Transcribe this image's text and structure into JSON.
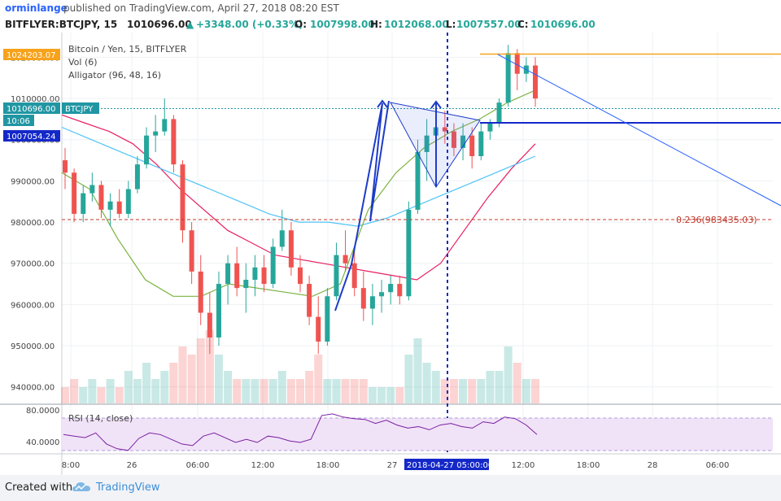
{
  "header": {
    "author": "orminlange",
    "published_text": "published on TradingView.com, April 27, 2018 08:20 EST"
  },
  "quote": {
    "symbol": "BITFLYER:BTCJPY, 15",
    "last": "1010696.00",
    "change": "+3348.00 (+0.33%)",
    "open_label": "O:",
    "open": "1007998.00",
    "high_label": "H:",
    "high": "1012068.00",
    "low_label": "L:",
    "low": "1007557.00",
    "close_label": "C:",
    "close": "1010696.00"
  },
  "legend": {
    "title": "Bitcoin / Yen, 15, BITFLYER",
    "vol": "Vol (6)",
    "alligator": "Alligator (96, 48, 16)"
  },
  "price_tags": {
    "high_line": "1024203.07",
    "last_price": "1010696.00",
    "symbol": "BTCJPY",
    "countdown": "10:06",
    "blue_line": "1007054.24"
  },
  "fib_label": "0.236(983435.03)",
  "rsi": {
    "label": "RSI (14, close)",
    "ticks": [
      "80.0000",
      "40.0000"
    ],
    "upper": 70,
    "lower": 30
  },
  "time_cursor": "2018-04-27 05:00:00",
  "footer": {
    "created": "Created with",
    "brand": "TradingView"
  },
  "colors": {
    "up": "#26a69a",
    "down": "#ef5350",
    "accent": "#2962ff",
    "orange": "#f7a21b"
  },
  "chart_data": {
    "type": "candlestick",
    "title": "Bitcoin / Yen, 15, BITFLYER",
    "ylim": [
      936000,
      1026000
    ],
    "y_ticks": [
      1020000,
      1010000,
      1000000,
      990000,
      980000,
      970000,
      960000,
      950000,
      940000
    ],
    "y_tick_labels": [
      "1020000.00",
      "1010000.00",
      "1000000.00",
      "990000.00",
      "980000.00",
      "970000.00",
      "960000.00",
      "950000.00",
      "940000.00"
    ],
    "x_ticks": [
      "8:00",
      "26",
      "06:00",
      "12:00",
      "18:00",
      "27",
      "12:00",
      "18:00",
      "28",
      "06:00"
    ],
    "candles": [
      [
        995000,
        998000,
        988000,
        992000
      ],
      [
        992000,
        993000,
        980000,
        982000
      ],
      [
        982000,
        989000,
        980000,
        987000
      ],
      [
        987000,
        992000,
        985000,
        989000
      ],
      [
        989000,
        990000,
        981000,
        983000
      ],
      [
        983000,
        987000,
        979000,
        985000
      ],
      [
        985000,
        988000,
        981000,
        982000
      ],
      [
        982000,
        990000,
        981000,
        988000
      ],
      [
        988000,
        996000,
        987000,
        994000
      ],
      [
        994000,
        1003000,
        993000,
        1001000
      ],
      [
        1001000,
        1006000,
        997000,
        1002000
      ],
      [
        1002000,
        1010000,
        1001000,
        1005000
      ],
      [
        1005000,
        1006000,
        992000,
        994000
      ],
      [
        994000,
        995000,
        975000,
        978000
      ],
      [
        978000,
        980000,
        965000,
        968000
      ],
      [
        968000,
        972000,
        955000,
        958000
      ],
      [
        958000,
        963000,
        948000,
        952000
      ],
      [
        952000,
        968000,
        950000,
        965000
      ],
      [
        965000,
        972000,
        960000,
        970000
      ],
      [
        970000,
        974000,
        962000,
        964000
      ],
      [
        964000,
        970000,
        958000,
        966000
      ],
      [
        966000,
        972000,
        962000,
        969000
      ],
      [
        969000,
        972000,
        963000,
        965000
      ],
      [
        965000,
        976000,
        964000,
        974000
      ],
      [
        974000,
        983000,
        973000,
        978000
      ],
      [
        978000,
        980000,
        967000,
        969000
      ],
      [
        969000,
        972000,
        963000,
        965000
      ],
      [
        965000,
        967000,
        955000,
        957000
      ],
      [
        957000,
        962000,
        948000,
        951000
      ],
      [
        951000,
        964000,
        950000,
        962000
      ],
      [
        962000,
        975000,
        961000,
        972000
      ],
      [
        972000,
        978000,
        968000,
        970000
      ],
      [
        970000,
        974000,
        962000,
        964000
      ],
      [
        964000,
        968000,
        956000,
        959000
      ],
      [
        959000,
        965000,
        955000,
        962000
      ],
      [
        962000,
        966000,
        958000,
        963000
      ],
      [
        963000,
        967000,
        960000,
        965000
      ],
      [
        965000,
        967000,
        960000,
        962000
      ],
      [
        962000,
        985000,
        961000,
        983000
      ],
      [
        983000,
        1000000,
        982000,
        997000
      ],
      [
        997000,
        1005000,
        990000,
        1001000
      ],
      [
        1001000,
        1007000,
        998000,
        1003000
      ],
      [
        1003000,
        1007000,
        999000,
        1002000
      ],
      [
        1002000,
        1004000,
        996000,
        998000
      ],
      [
        998000,
        1004000,
        995000,
        1001000
      ],
      [
        1001000,
        1003000,
        993000,
        996000
      ],
      [
        996000,
        1004000,
        995000,
        1002000
      ],
      [
        1002000,
        1005000,
        1000000,
        1004000
      ],
      [
        1004000,
        1010000,
        1003000,
        1009000
      ],
      [
        1009000,
        1023000,
        1008000,
        1021000
      ],
      [
        1021000,
        1022000,
        1012000,
        1016000
      ],
      [
        1016000,
        1020000,
        1014000,
        1018000
      ],
      [
        1018000,
        1020000,
        1008000,
        1010000
      ]
    ],
    "volume": [
      2,
      3,
      2,
      3,
      2,
      3,
      2,
      4,
      3,
      5,
      3,
      4,
      5,
      7,
      6,
      8,
      9,
      6,
      4,
      3,
      3,
      3,
      3,
      3,
      4,
      3,
      3,
      4,
      6,
      3,
      3,
      3,
      3,
      3,
      2,
      2,
      2,
      2,
      6,
      8,
      5,
      4,
      3,
      3,
      3,
      3,
      3,
      4,
      4,
      7,
      5,
      3,
      3
    ],
    "alligator_jaw": [
      1006000,
      1004000,
      1002000,
      999000,
      994000,
      988000,
      983000,
      978000,
      975000,
      972000,
      971000,
      970000,
      969000,
      968000,
      967000,
      966000,
      970000,
      978000,
      986000,
      993000,
      999000
    ],
    "alligator_teeth": [
      1003000,
      1000000,
      997000,
      994000,
      991000,
      988000,
      985000,
      982000,
      980000,
      980000,
      979000,
      981000,
      984000,
      987000,
      990000,
      993000,
      996000
    ],
    "alligator_lips": [
      992000,
      988000,
      976000,
      966000,
      962000,
      962000,
      965000,
      964000,
      963000,
      962000,
      965000,
      983000,
      992000,
      998000,
      1002000,
      1005000,
      1009000,
      1012000
    ],
    "rsi": [
      50,
      48,
      46,
      52,
      38,
      32,
      30,
      45,
      52,
      50,
      44,
      38,
      36,
      48,
      52,
      46,
      40,
      44,
      40,
      48,
      46,
      42,
      40,
      44,
      74,
      76,
      72,
      70,
      69,
      64,
      68,
      62,
      58,
      60,
      56,
      62,
      64,
      60,
      58,
      66,
      64,
      72,
      70,
      62,
      50
    ],
    "fib_level": 983435.03,
    "high_line": 1024203.07,
    "blue_line": 1007054.24
  }
}
